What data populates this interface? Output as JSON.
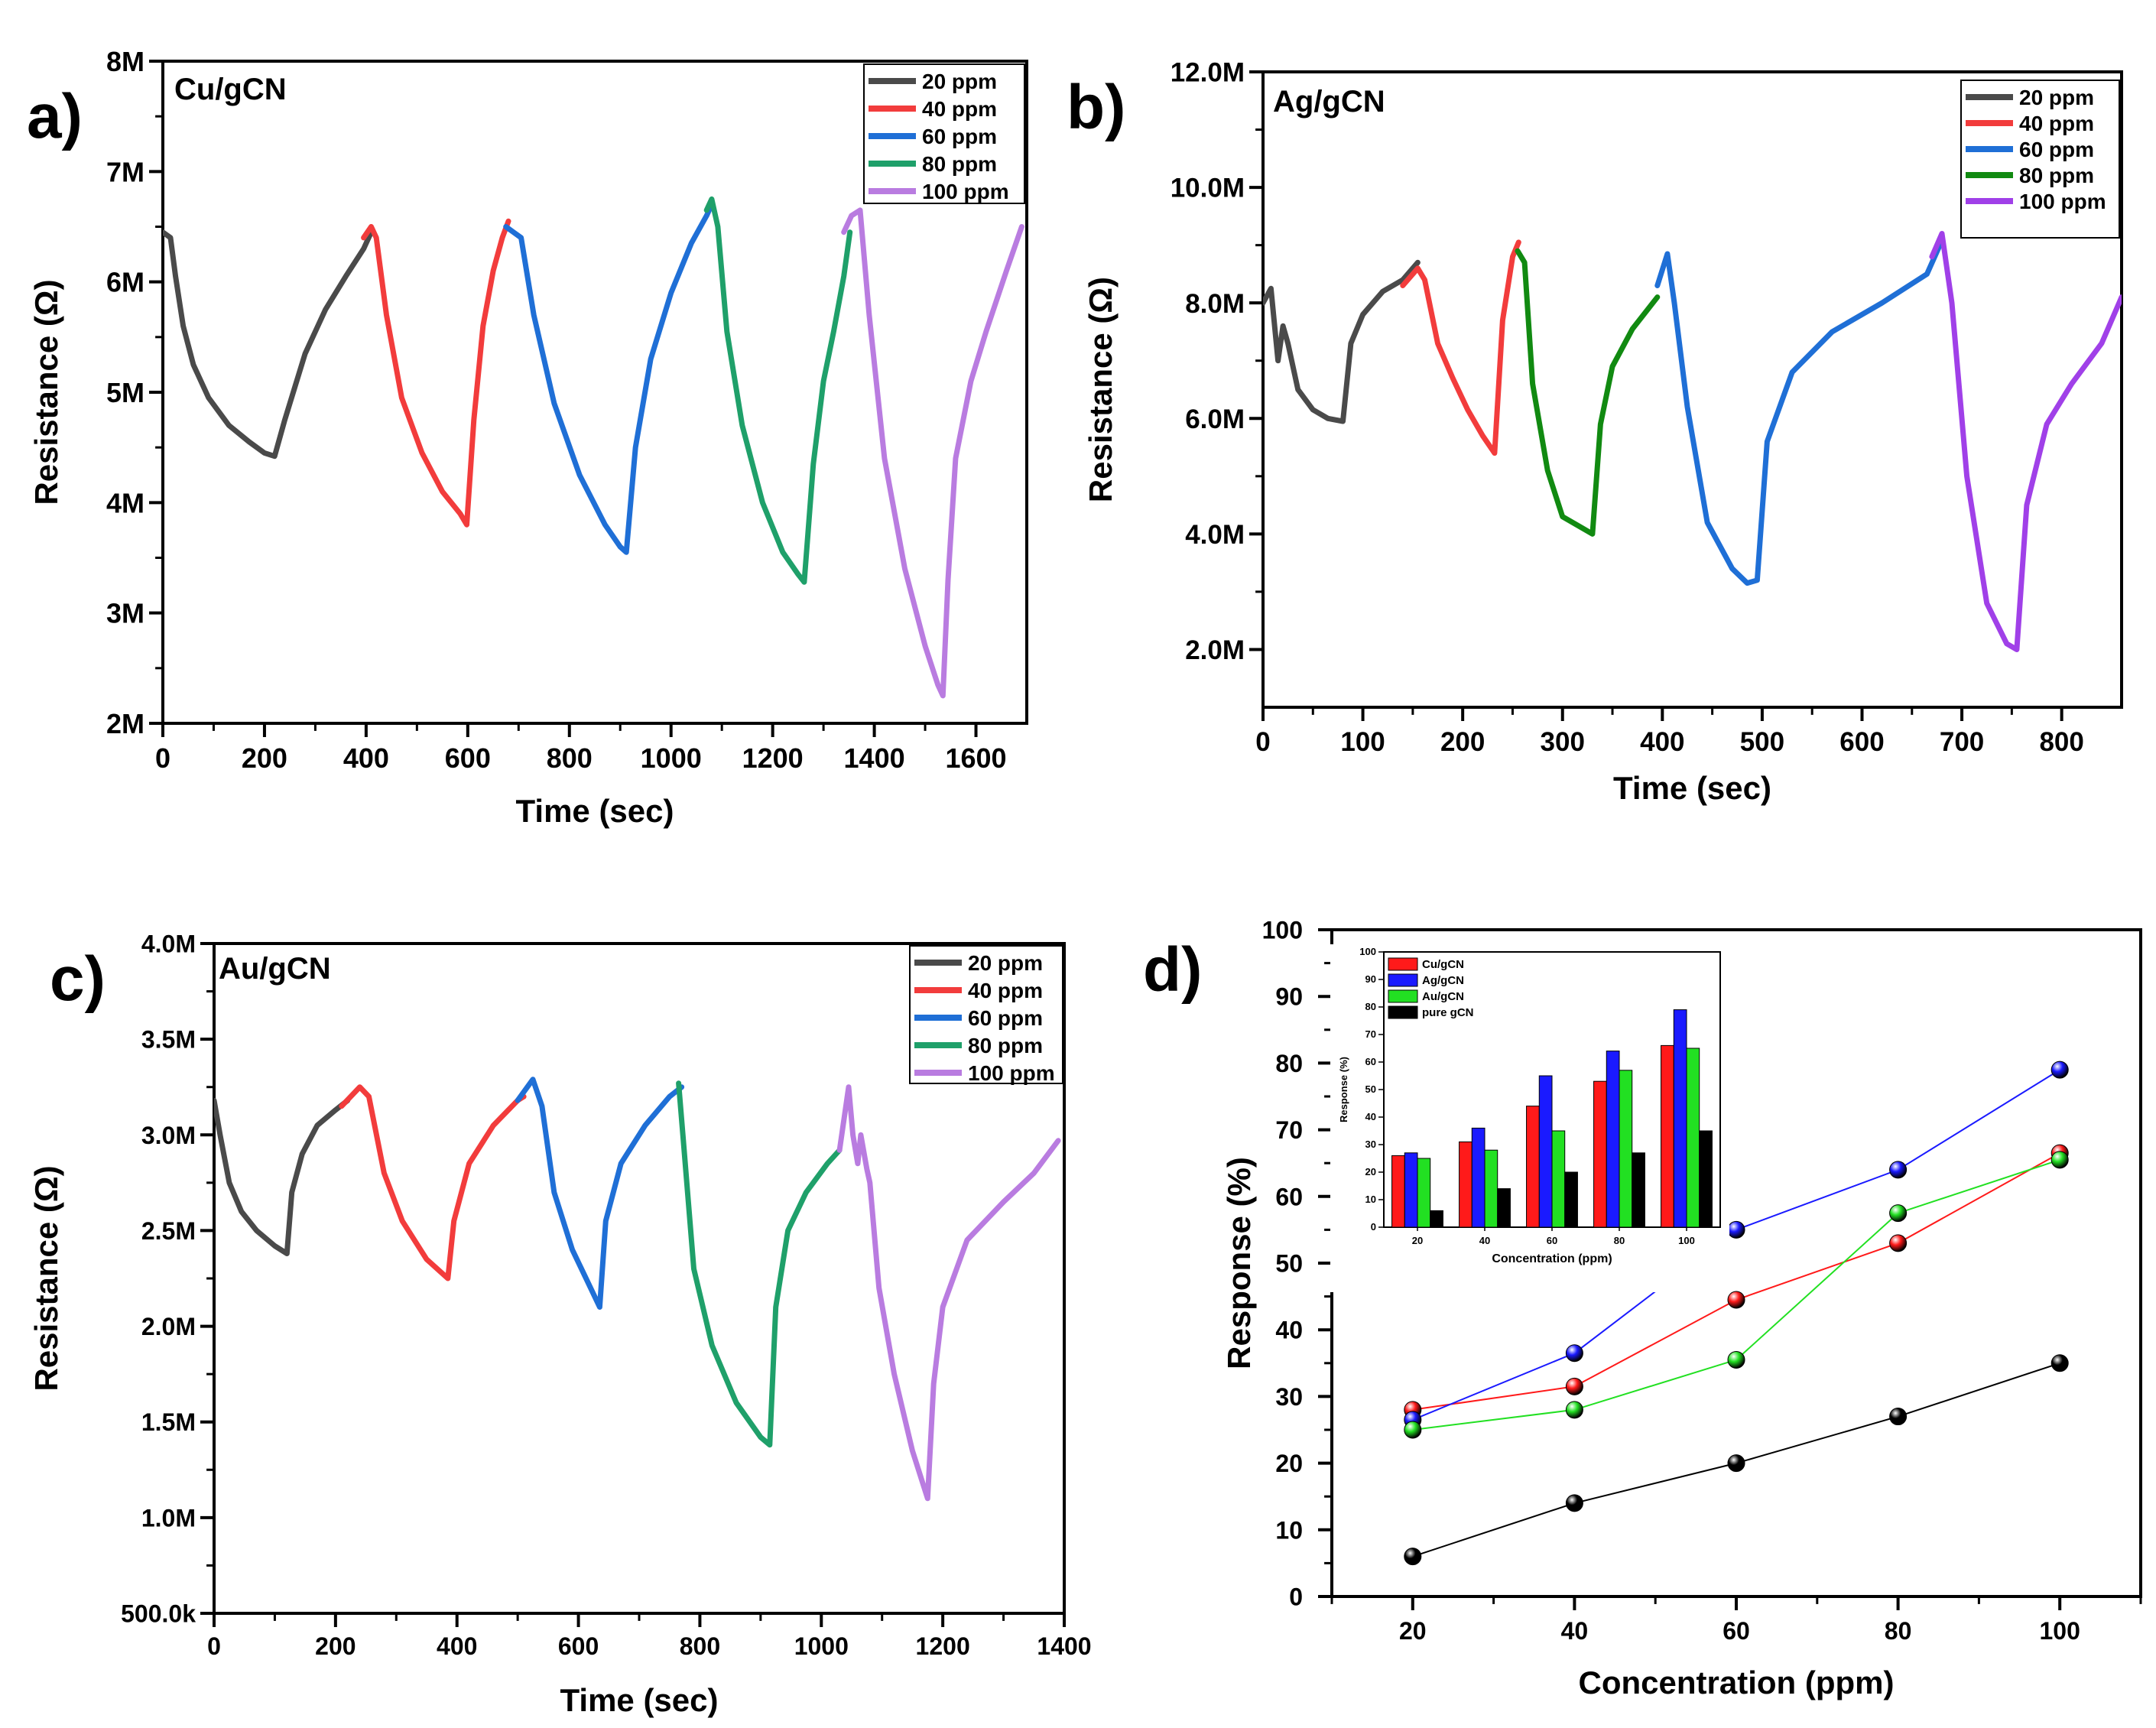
{
  "figure": {
    "colors": {
      "20 ppm": "#4a4a4a",
      "40 ppm": "#f23c3c",
      "60 ppm": "#1f6fd6",
      "80 ppm": "#1fa06a",
      "80 ppm_b": "#118a11",
      "100 ppm": "#b97ce0",
      "100 ppm_b": "#a040e8",
      "Cu/gCN": "#ff1a1a",
      "Ag/gCN": "#1a1aff",
      "Au/gCN": "#22e022",
      "pure gCN": "#000000"
    }
  },
  "chart_data": [
    {
      "panel": "a)",
      "type": "line",
      "title": "Cu/gCN",
      "xlabel": "Time (sec)",
      "ylabel": "Resistance (Ω)",
      "xlim": [
        0,
        1700
      ],
      "ylim": [
        2000000,
        8000000
      ],
      "xticks": [
        0,
        200,
        400,
        600,
        800,
        1000,
        1200,
        1400,
        1600
      ],
      "xtick_labels": [
        "0",
        "200",
        "400",
        "600",
        "800",
        "1000",
        "1200",
        "1400",
        "1600"
      ],
      "yticks": [
        2000000,
        3000000,
        4000000,
        5000000,
        6000000,
        7000000,
        8000000
      ],
      "ytick_labels": [
        "2M",
        "3M",
        "4M",
        "5M",
        "6M",
        "7M",
        "8M"
      ],
      "legend": [
        "20 ppm",
        "40 ppm",
        "60 ppm",
        "80 ppm",
        "100 ppm"
      ],
      "series": [
        {
          "name": "20 ppm",
          "x": [
            0,
            15,
            25,
            40,
            60,
            90,
            130,
            170,
            200,
            220,
            240,
            280,
            320,
            360,
            395,
            410
          ],
          "y": [
            6450000,
            6400000,
            6050000,
            5600000,
            5250000,
            4950000,
            4700000,
            4550000,
            4450000,
            4420000,
            4750000,
            5350000,
            5750000,
            6050000,
            6300000,
            6450000
          ]
        },
        {
          "name": "40 ppm",
          "x": [
            395,
            410,
            420,
            440,
            470,
            510,
            550,
            585,
            598,
            612,
            630,
            650,
            668,
            680
          ],
          "y": [
            6400000,
            6500000,
            6400000,
            5700000,
            4950000,
            4450000,
            4100000,
            3900000,
            3800000,
            4750000,
            5600000,
            6100000,
            6400000,
            6550000
          ]
        },
        {
          "name": "60 ppm",
          "x": [
            675,
            690,
            705,
            730,
            770,
            820,
            870,
            900,
            912,
            930,
            960,
            1000,
            1040,
            1070,
            1080
          ],
          "y": [
            6500000,
            6450000,
            6400000,
            5700000,
            4900000,
            4250000,
            3800000,
            3600000,
            3550000,
            4500000,
            5300000,
            5900000,
            6350000,
            6600000,
            6700000
          ]
        },
        {
          "name": "80 ppm",
          "x": [
            1070,
            1080,
            1092,
            1110,
            1140,
            1180,
            1220,
            1250,
            1262,
            1280,
            1300,
            1320,
            1340,
            1352
          ],
          "y": [
            6650000,
            6750000,
            6500000,
            5550000,
            4700000,
            4000000,
            3550000,
            3350000,
            3280000,
            4350000,
            5100000,
            5550000,
            6050000,
            6450000
          ]
        },
        {
          "name": "100 ppm",
          "x": [
            1340,
            1355,
            1372,
            1390,
            1420,
            1460,
            1500,
            1525,
            1535,
            1545,
            1560,
            1590,
            1620,
            1660,
            1690
          ],
          "y": [
            6450000,
            6600000,
            6650000,
            5700000,
            4400000,
            3400000,
            2700000,
            2350000,
            2250000,
            3300000,
            4400000,
            5100000,
            5550000,
            6100000,
            6500000
          ]
        }
      ]
    },
    {
      "panel": "b)",
      "type": "line",
      "title": "Ag/gCN",
      "xlabel": "Time (sec)",
      "ylabel": "Resistance (Ω)",
      "xlim": [
        0,
        860
      ],
      "ylim": [
        1000000,
        12000000
      ],
      "xticks": [
        0,
        100,
        200,
        300,
        400,
        500,
        600,
        700,
        800
      ],
      "xtick_labels": [
        "0",
        "100",
        "200",
        "300",
        "400",
        "500",
        "600",
        "700",
        "800"
      ],
      "yticks": [
        2000000,
        4000000,
        6000000,
        8000000,
        10000000,
        12000000
      ],
      "ytick_labels": [
        "2.0M",
        "4.0M",
        "6.0M",
        "8.0M",
        "10.0M",
        "12.0M"
      ],
      "legend": [
        "20 ppm",
        "40 ppm",
        "60 ppm",
        "80 ppm",
        "100 ppm"
      ],
      "series": [
        {
          "name": "20 ppm",
          "x": [
            0,
            8,
            15,
            20,
            25,
            35,
            50,
            65,
            80,
            88,
            100,
            120,
            140,
            155
          ],
          "y": [
            8000000,
            8250000,
            7000000,
            7600000,
            7300000,
            6500000,
            6150000,
            6000000,
            5950000,
            7300000,
            7800000,
            8200000,
            8400000,
            8700000
          ]
        },
        {
          "name": "40 ppm",
          "x": [
            140,
            155,
            162,
            175,
            190,
            205,
            220,
            232,
            240,
            250,
            256
          ],
          "y": [
            8300000,
            8600000,
            8400000,
            7300000,
            6700000,
            6150000,
            5700000,
            5400000,
            7700000,
            8800000,
            9050000
          ]
        },
        {
          "name": "80 ppm",
          "x": [
            255,
            262,
            270,
            285,
            300,
            320,
            330,
            338,
            350,
            370,
            395
          ],
          "y": [
            8900000,
            8700000,
            6600000,
            5100000,
            4300000,
            4100000,
            4000000,
            5900000,
            6900000,
            7550000,
            8100000
          ]
        },
        {
          "name": "60 ppm",
          "x": [
            395,
            405,
            412,
            425,
            445,
            470,
            485,
            495,
            505,
            530,
            570,
            620,
            665,
            678
          ],
          "y": [
            8300000,
            8850000,
            8000000,
            6200000,
            4200000,
            3400000,
            3150000,
            3200000,
            5600000,
            6800000,
            7500000,
            8000000,
            8500000,
            9000000
          ]
        },
        {
          "name": "100 ppm",
          "x": [
            670,
            680,
            690,
            705,
            725,
            745,
            755,
            765,
            785,
            810,
            840,
            860
          ],
          "y": [
            8800000,
            9200000,
            8000000,
            5000000,
            2800000,
            2100000,
            2000000,
            4500000,
            5900000,
            6600000,
            7300000,
            8100000
          ]
        }
      ]
    },
    {
      "panel": "c)",
      "type": "line",
      "title": "Au/gCN",
      "xlabel": "Time (sec)",
      "ylabel": "Resistance (Ω)",
      "xlim": [
        0,
        1400
      ],
      "ylim": [
        500000,
        4000000
      ],
      "xticks": [
        0,
        200,
        400,
        600,
        800,
        1000,
        1200,
        1400
      ],
      "xtick_labels": [
        "0",
        "200",
        "400",
        "600",
        "800",
        "1000",
        "1200",
        "1400"
      ],
      "yticks": [
        500000,
        1000000,
        1500000,
        2000000,
        2500000,
        3000000,
        3500000,
        4000000
      ],
      "ytick_labels": [
        "500.0k",
        "1.0M",
        "1.5M",
        "2.0M",
        "2.5M",
        "3.0M",
        "3.5M",
        "4.0M"
      ],
      "legend": [
        "20 ppm",
        "40 ppm",
        "60 ppm",
        "80 ppm",
        "100 ppm"
      ],
      "series": [
        {
          "name": "20 ppm",
          "x": [
            0,
            10,
            25,
            45,
            70,
            100,
            120,
            128,
            145,
            170,
            200,
            220
          ],
          "y": [
            3180000,
            3000000,
            2750000,
            2600000,
            2500000,
            2420000,
            2380000,
            2700000,
            2900000,
            3050000,
            3130000,
            3180000
          ]
        },
        {
          "name": "40 ppm",
          "x": [
            210,
            240,
            255,
            280,
            310,
            350,
            385,
            395,
            420,
            460,
            500,
            510
          ],
          "y": [
            3150000,
            3250000,
            3200000,
            2800000,
            2550000,
            2350000,
            2250000,
            2550000,
            2850000,
            3050000,
            3180000,
            3200000
          ]
        },
        {
          "name": "60 ppm",
          "x": [
            500,
            525,
            540,
            560,
            590,
            620,
            635,
            645,
            670,
            710,
            750,
            770
          ],
          "y": [
            3180000,
            3290000,
            3150000,
            2700000,
            2400000,
            2200000,
            2100000,
            2550000,
            2850000,
            3050000,
            3200000,
            3250000
          ]
        },
        {
          "name": "80 ppm",
          "x": [
            765,
            772,
            790,
            820,
            860,
            900,
            915,
            925,
            945,
            975,
            1010,
            1030
          ],
          "y": [
            3270000,
            3000000,
            2300000,
            1900000,
            1600000,
            1420000,
            1380000,
            2100000,
            2500000,
            2700000,
            2850000,
            2920000
          ]
        },
        {
          "name": "100 ppm",
          "x": [
            1030,
            1045,
            1052,
            1060,
            1065,
            1075,
            1080,
            1095,
            1120,
            1150,
            1175,
            1185,
            1200,
            1240,
            1300,
            1350,
            1390
          ],
          "y": [
            2920000,
            3250000,
            3000000,
            2850000,
            3000000,
            2820000,
            2750000,
            2200000,
            1750000,
            1350000,
            1100000,
            1700000,
            2100000,
            2450000,
            2650000,
            2800000,
            2970000
          ]
        }
      ]
    },
    {
      "panel": "d)",
      "type": "scatter",
      "xlabel": "Concentration (ppm)",
      "ylabel": "Response (%)",
      "xlim": [
        10,
        110
      ],
      "ylim": [
        0,
        100
      ],
      "xticks": [
        20,
        40,
        60,
        80,
        100
      ],
      "xtick_labels": [
        "20",
        "40",
        "60",
        "80",
        "100"
      ],
      "yticks": [
        0,
        10,
        20,
        30,
        40,
        50,
        60,
        70,
        80,
        90,
        100
      ],
      "ytick_labels": [
        "0",
        "10",
        "20",
        "30",
        "40",
        "50",
        "60",
        "70",
        "80",
        "90",
        "100"
      ],
      "categories": [
        20,
        40,
        60,
        80,
        100
      ],
      "series": [
        {
          "name": "Cu/gCN",
          "values": [
            28,
            31.5,
            44.5,
            53,
            66.5
          ]
        },
        {
          "name": "Ag/gCN",
          "values": [
            26.5,
            36.5,
            55,
            64,
            79
          ]
        },
        {
          "name": "Au/gCN",
          "values": [
            25,
            28,
            35.5,
            57.5,
            65.5
          ]
        },
        {
          "name": "pure gCN",
          "values": [
            6,
            14,
            20,
            27,
            35
          ]
        }
      ]
    },
    {
      "panel": "d) inset",
      "type": "bar",
      "xlabel": "Concentration (ppm)",
      "ylabel": "Response (%)",
      "ylim": [
        0,
        100
      ],
      "yticks": [
        0,
        10,
        20,
        30,
        40,
        50,
        60,
        70,
        80,
        90,
        100
      ],
      "ytick_labels": [
        "0",
        "10",
        "20",
        "30",
        "40",
        "50",
        "60",
        "70",
        "80",
        "90",
        "100"
      ],
      "categories": [
        "20",
        "40",
        "60",
        "80",
        "100"
      ],
      "legend": [
        "Cu/gCN",
        "Ag/gCN",
        "Au/gCN",
        "pure gCN"
      ],
      "series": [
        {
          "name": "Cu/gCN",
          "values": [
            26,
            31,
            44,
            53,
            66
          ]
        },
        {
          "name": "Ag/gCN",
          "values": [
            27,
            36,
            55,
            64,
            79
          ]
        },
        {
          "name": "Au/gCN",
          "values": [
            25,
            28,
            35,
            57,
            65
          ]
        },
        {
          "name": "pure gCN",
          "values": [
            6,
            14,
            20,
            27,
            35
          ]
        }
      ]
    }
  ]
}
